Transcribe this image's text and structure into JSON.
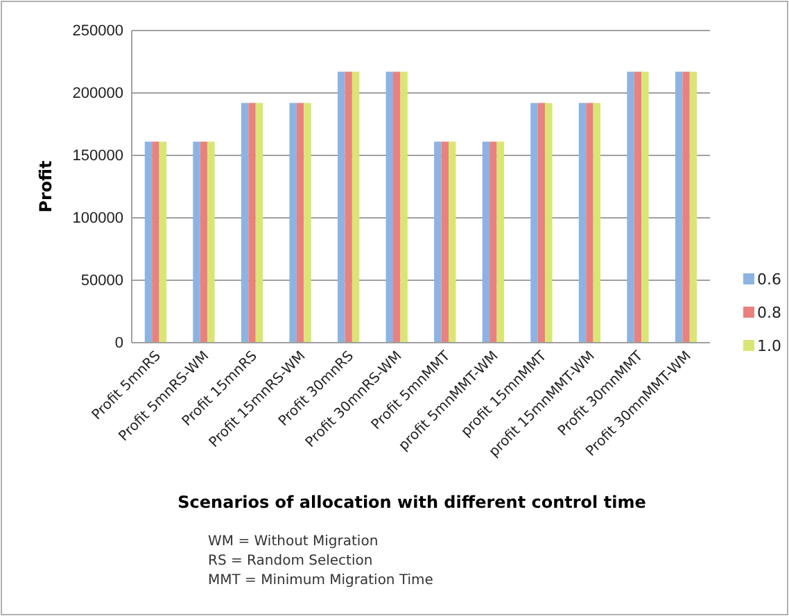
{
  "chart_data": {
    "type": "bar",
    "xlabel": "Scenarios of allocation with different control time",
    "ylabel": "Profit",
    "categories": [
      "Profit 5mnRS",
      "Profit 5mnRS-WM",
      "Profit 15mnRS",
      "Profit 15mnRS-WM",
      "Profit 30mnRS",
      "Profit 30mnRS-WM",
      "Profit 5mnMMT",
      "profit 5mnMMT-WM",
      "profit 15mnMMT",
      "profit 15mnMMT-WM",
      "Profit 30mnMMT",
      "Profit 30mnMMT-WM"
    ],
    "series": [
      {
        "name": "0.6",
        "color": "#8db3e2",
        "values": [
          161000,
          161000,
          192000,
          192000,
          217000,
          217000,
          161000,
          161000,
          192000,
          192000,
          217000,
          217000
        ]
      },
      {
        "name": "0.8",
        "color": "#e9827e",
        "values": [
          161000,
          161000,
          192000,
          192000,
          217000,
          217000,
          161000,
          161000,
          192000,
          192000,
          217000,
          217000
        ]
      },
      {
        "name": "1.0",
        "color": "#d9e675",
        "values": [
          161000,
          161000,
          192000,
          192000,
          217000,
          217000,
          161000,
          161000,
          192000,
          192000,
          217000,
          217000
        ]
      }
    ],
    "ylim": [
      0,
      250000
    ],
    "yticks": [
      0,
      50000,
      100000,
      150000,
      200000,
      250000
    ],
    "grid": "y",
    "legend": "right",
    "annotations": [
      "WM = Without Migration",
      "RS = Random Selection",
      "MMT = Minimum Migration Time"
    ]
  }
}
